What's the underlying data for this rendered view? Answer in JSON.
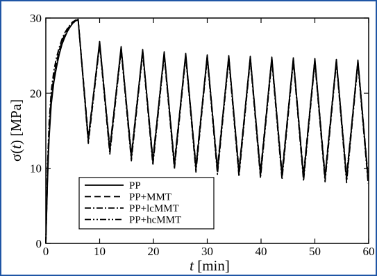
{
  "chart_data": {
    "type": "line",
    "xlabel_var": "t",
    "xlabel_unit": "[min]",
    "ylabel_prefix": "σ(",
    "ylabel_var": "t",
    "ylabel_suffix": ") [MPa]",
    "xlim": [
      0,
      60
    ],
    "ylim": [
      0,
      30
    ],
    "xticks": [
      0,
      10,
      20,
      30,
      40,
      50,
      60
    ],
    "yticks": [
      0,
      10,
      20,
      30
    ],
    "grid": false,
    "legend_position": "bottom-left",
    "series": [
      {
        "name": "PP",
        "dash": "solid",
        "x": [
          0,
          0.3,
          0.6,
          1,
          1.5,
          2,
          2.5,
          3,
          3.5,
          4,
          4.5,
          5,
          5.5,
          6,
          7.9,
          10,
          11.9,
          14,
          15.9,
          18,
          19.9,
          22,
          23.9,
          26,
          27.9,
          30,
          31.9,
          34,
          35.9,
          38,
          39.9,
          42,
          43.9,
          46,
          47.9,
          50,
          51.9,
          54,
          55.9,
          58,
          59.9
        ],
        "y": [
          0,
          8,
          14,
          18.5,
          21.5,
          23.5,
          25.2,
          26.5,
          27.4,
          28.2,
          28.8,
          29.3,
          29.6,
          29.8,
          13.7,
          26.9,
          12.3,
          26.2,
          11.4,
          25.8,
          10.8,
          25.5,
          10.3,
          25.3,
          9.9,
          25.1,
          9.6,
          25.0,
          9.3,
          24.9,
          9.1,
          24.8,
          8.9,
          24.7,
          8.7,
          24.6,
          8.6,
          24.5,
          8.5,
          24.4,
          8.4
        ]
      },
      {
        "name": "PP+MMT",
        "dash": "dashed",
        "x": [
          0,
          0.3,
          0.6,
          1,
          1.5,
          2,
          2.5,
          3,
          3.5,
          4,
          4.5,
          5,
          5.5,
          6,
          7.9,
          10,
          11.9,
          14,
          15.9,
          18,
          19.9,
          22,
          23.9,
          26,
          27.9,
          30,
          31.9,
          34,
          35.9,
          38,
          39.9,
          42,
          43.9,
          46,
          47.9,
          50,
          51.9,
          54,
          55.9,
          58,
          59.9
        ],
        "y": [
          0,
          9,
          15,
          19.5,
          22.3,
          24.2,
          25.7,
          26.9,
          27.8,
          28.5,
          29.0,
          29.4,
          29.7,
          29.9,
          14.2,
          26.6,
          12.8,
          25.9,
          11.9,
          25.5,
          11.3,
          25.2,
          10.8,
          25.0,
          10.4,
          24.9,
          10.1,
          24.8,
          9.8,
          24.7,
          9.6,
          24.6,
          9.4,
          24.5,
          9.2,
          24.4,
          9.1,
          24.3,
          9.0,
          24.2,
          8.9
        ]
      },
      {
        "name": "PP+lcMMT",
        "dash": "dashdot",
        "x": [
          0,
          0.3,
          0.6,
          1,
          1.5,
          2,
          2.5,
          3,
          3.5,
          4,
          4.5,
          5,
          5.5,
          6,
          7.9,
          10,
          11.9,
          14,
          15.9,
          18,
          19.9,
          22,
          23.9,
          26,
          27.9,
          30,
          31.9,
          34,
          35.9,
          38,
          39.9,
          42,
          43.9,
          46,
          47.9,
          50,
          51.9,
          54,
          55.9,
          58,
          59.9
        ],
        "y": [
          0,
          10,
          16,
          20.3,
          23.0,
          24.8,
          26.1,
          27.2,
          28.0,
          28.6,
          29.1,
          29.5,
          29.7,
          29.9,
          13.3,
          26.4,
          11.9,
          25.7,
          11.0,
          25.3,
          10.4,
          25.0,
          9.9,
          24.8,
          9.5,
          24.6,
          9.2,
          24.5,
          8.9,
          24.4,
          8.7,
          24.3,
          8.5,
          24.2,
          8.3,
          24.1,
          8.2,
          24.0,
          8.1,
          23.9,
          8.0
        ]
      },
      {
        "name": "PP+hcMMT",
        "dash": "dashdotdot",
        "x": [
          0,
          0.3,
          0.6,
          1,
          1.5,
          2,
          2.5,
          3,
          3.5,
          4,
          4.5,
          5,
          5.5,
          6,
          7.9,
          10,
          11.9,
          14,
          15.9,
          18,
          19.9,
          22,
          23.9,
          26,
          27.9,
          30,
          31.9,
          34,
          35.9,
          38,
          39.9,
          42,
          43.9,
          46,
          47.9,
          50,
          51.9,
          54,
          55.9,
          58,
          59.9
        ],
        "y": [
          0,
          8.5,
          14.5,
          19,
          22,
          24,
          25.5,
          26.7,
          27.6,
          28.3,
          28.9,
          29.3,
          29.6,
          29.8,
          13.9,
          26.7,
          12.6,
          26.0,
          11.7,
          25.6,
          11.1,
          25.3,
          10.6,
          25.1,
          10.2,
          24.9,
          9.9,
          24.8,
          9.6,
          24.7,
          9.4,
          24.6,
          9.2,
          24.5,
          9.0,
          24.4,
          8.9,
          24.3,
          8.8,
          24.2,
          8.7
        ]
      }
    ]
  }
}
